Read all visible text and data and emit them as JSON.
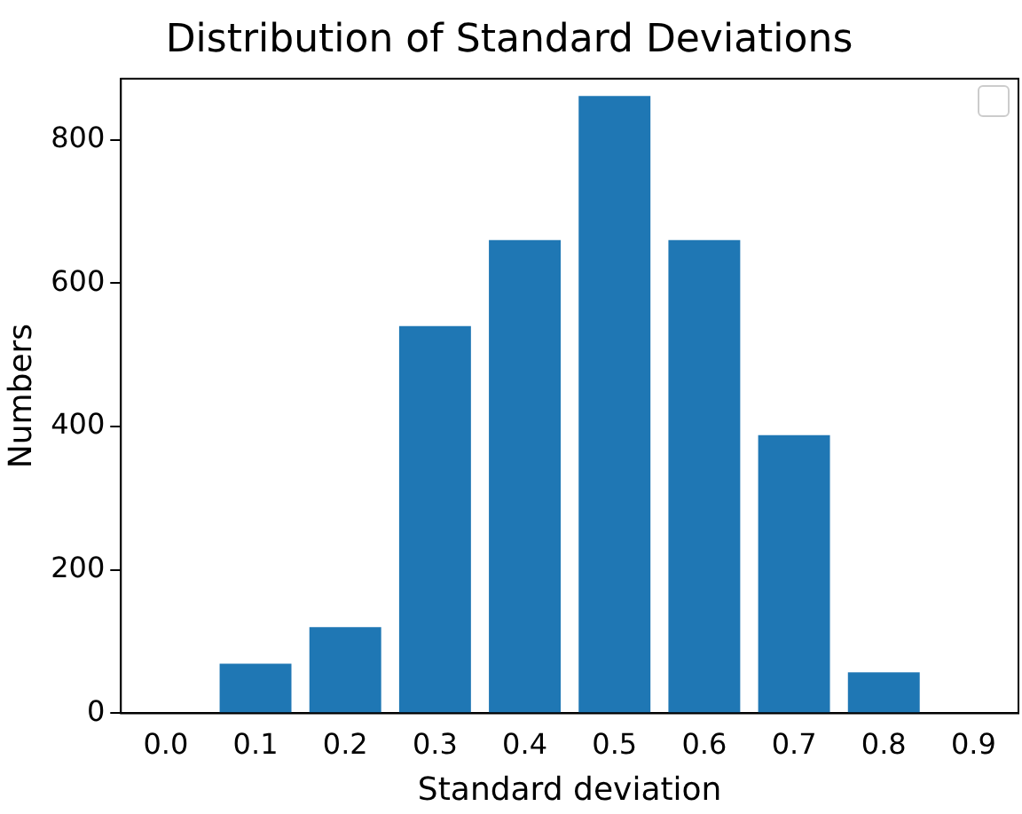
{
  "chart_data": {
    "type": "bar",
    "title": "Distribution of Standard Deviations",
    "xlabel": "Standard deviation",
    "ylabel": "Numbers",
    "categories": [
      "0.0",
      "0.1",
      "0.2",
      "0.3",
      "0.4",
      "0.5",
      "0.6",
      "0.7",
      "0.8",
      "0.9"
    ],
    "values": [
      0,
      69,
      120,
      540,
      660,
      861,
      660,
      388,
      57,
      0
    ],
    "color": "#1f77b4",
    "ylim": [
      0,
      885
    ],
    "yticks": [
      0,
      200,
      400,
      600,
      800
    ],
    "grid": false
  }
}
